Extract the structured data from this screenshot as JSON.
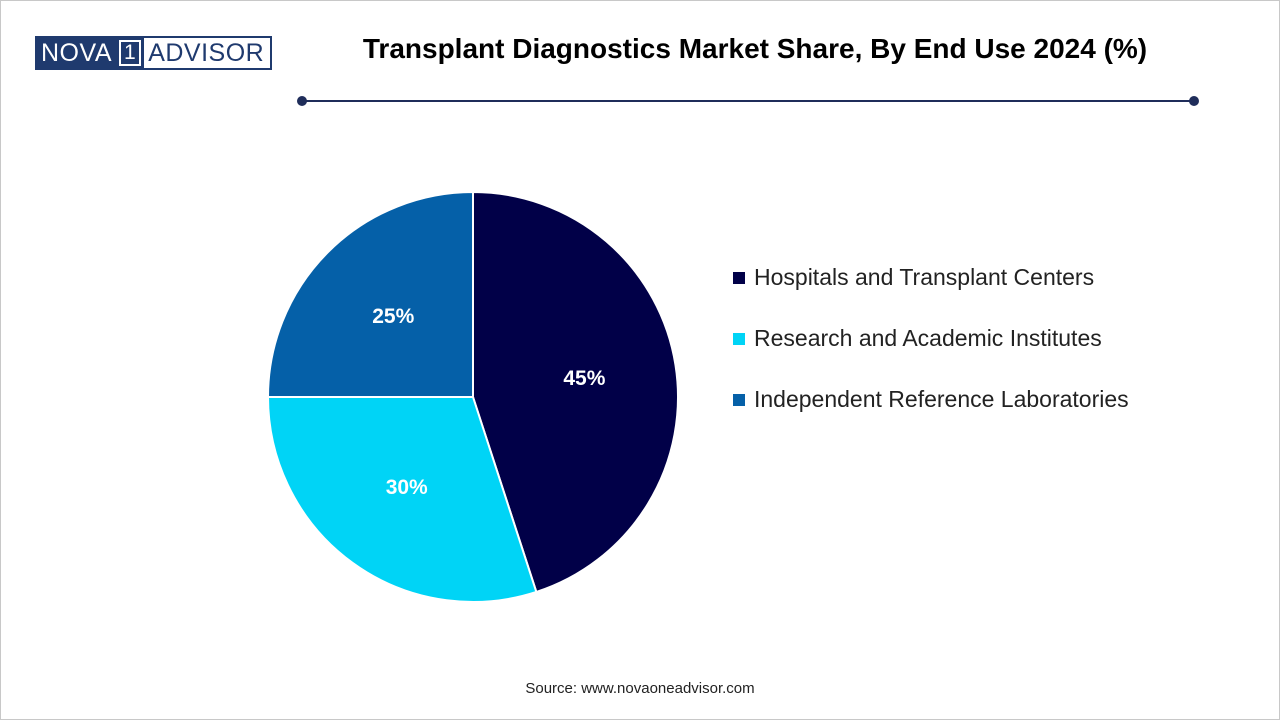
{
  "logo": {
    "part1": "NOVA",
    "part2": "1",
    "part3": "ADVISOR"
  },
  "header": {
    "title": "Transplant Diagnostics Market Share, By End Use 2024 (%)"
  },
  "colors": {
    "hospitals": "#010048",
    "research": "#00d4f6",
    "independent": "#0560a8",
    "divider": "#1f2d5a"
  },
  "chart_data": {
    "type": "pie",
    "title": "Transplant Diagnostics Market Share, By End Use 2024 (%)",
    "categories": [
      "Hospitals and Transplant Centers",
      "Research and Academic Institutes",
      "Independent Reference Laboratories"
    ],
    "values": [
      45,
      30,
      25
    ],
    "labels": [
      "45%",
      "30%",
      "25%"
    ],
    "colors": [
      "#010048",
      "#00d4f6",
      "#0560a8"
    ],
    "start_angle_deg": 0,
    "direction": "clockwise",
    "legend_position": "right"
  },
  "legend": [
    {
      "label": "Hospitals and Transplant Centers",
      "color": "#010048"
    },
    {
      "label": "Research and Academic Institutes",
      "color": "#00d4f6"
    },
    {
      "label": "Independent Reference Laboratories",
      "color": "#0560a8"
    }
  ],
  "footer": {
    "source": "Source: www.novaoneadvisor.com"
  }
}
